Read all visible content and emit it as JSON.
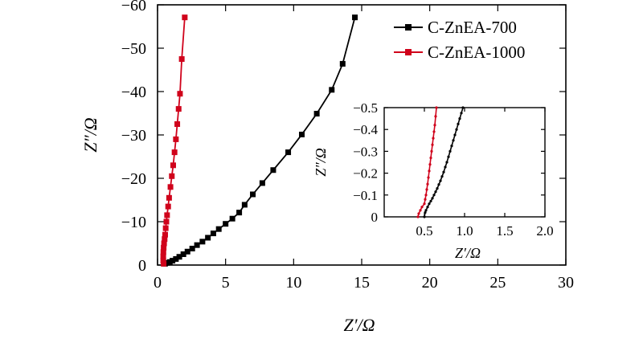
{
  "chart_data": [
    {
      "type": "scatter",
      "title": "",
      "xlabel": "Z′/Ω",
      "ylabel": "Z″/Ω",
      "xlim": [
        0,
        30
      ],
      "ylim": [
        0,
        -60
      ],
      "xticks": [
        0,
        5,
        10,
        15,
        20,
        25,
        30
      ],
      "xtick_labels": [
        "0",
        "5",
        "10",
        "15",
        "20",
        "25",
        "30"
      ],
      "yticks": [
        0,
        -10,
        -20,
        -30,
        -40,
        -50,
        -60
      ],
      "ytick_labels": [
        "0",
        "−10",
        "−20",
        "−30",
        "−40",
        "−50",
        "−60"
      ],
      "legend_position": "top-right",
      "series": [
        {
          "name": "C-ZnEA-700",
          "color": "#000000",
          "marker": "square",
          "x": [
            0.55,
            0.7,
            0.9,
            1.1,
            1.35,
            1.6,
            1.9,
            2.2,
            2.55,
            2.9,
            3.3,
            3.7,
            4.1,
            4.5,
            5.0,
            5.5,
            6.0,
            6.4,
            7.0,
            7.7,
            8.5,
            9.6,
            10.6,
            11.7,
            12.8,
            13.6,
            14.5
          ],
          "y": [
            -0.3,
            -0.5,
            -0.7,
            -1.0,
            -1.4,
            -1.9,
            -2.5,
            -3.1,
            -3.8,
            -4.6,
            -5.4,
            -6.3,
            -7.3,
            -8.3,
            -9.5,
            -10.7,
            -12.1,
            -13.9,
            -16.3,
            -18.9,
            -21.9,
            -26.0,
            -30.1,
            -34.9,
            -40.4,
            -46.4,
            -57.1
          ]
        },
        {
          "name": "C-ZnEA-1000",
          "color": "#d0021b",
          "marker": "square",
          "x": [
            0.45,
            0.42,
            0.42,
            0.43,
            0.45,
            0.48,
            0.52,
            0.56,
            0.6,
            0.65,
            0.7,
            0.78,
            0.85,
            0.95,
            1.05,
            1.15,
            1.25,
            1.35,
            1.45,
            1.55,
            1.65,
            1.78,
            2.0
          ],
          "y": [
            -0.3,
            -1.0,
            -2.0,
            -3.0,
            -4.0,
            -5.0,
            -6.0,
            -7.0,
            -8.5,
            -10.0,
            -11.5,
            -13.5,
            -15.5,
            -18.0,
            -20.5,
            -23.0,
            -26.0,
            -29.0,
            -32.5,
            -36.0,
            -39.5,
            -47.5,
            -57.1
          ]
        }
      ]
    },
    {
      "type": "line",
      "title": "",
      "xlabel": "Z′/Ω",
      "ylabel": "Z″/Ω",
      "xlim": [
        0,
        2.0
      ],
      "ylim": [
        0,
        -0.5
      ],
      "xticks": [
        0.5,
        1.0,
        1.5,
        2.0
      ],
      "xtick_labels": [
        "0.5",
        "1.0",
        "1.5",
        "2.0"
      ],
      "yticks": [
        0,
        -0.1,
        -0.2,
        -0.3,
        -0.4,
        -0.5
      ],
      "ytick_labels": [
        "0",
        "−0.1",
        "−0.2",
        "−0.3",
        "−0.4",
        "−0.5"
      ],
      "series": [
        {
          "name": "C-ZnEA-700",
          "color": "#000000",
          "marker": "dot",
          "x": [
            0.5,
            0.51,
            0.52,
            0.54,
            0.56,
            0.58,
            0.6,
            0.62,
            0.64,
            0.66,
            0.68,
            0.7,
            0.72,
            0.74,
            0.76,
            0.78,
            0.8,
            0.82,
            0.84,
            0.86,
            0.88,
            0.9,
            0.92,
            0.94,
            0.96,
            0.98
          ],
          "y": [
            -0.0,
            -0.02,
            -0.03,
            -0.045,
            -0.06,
            -0.072,
            -0.085,
            -0.1,
            -0.115,
            -0.13,
            -0.148,
            -0.165,
            -0.185,
            -0.205,
            -0.228,
            -0.25,
            -0.275,
            -0.3,
            -0.325,
            -0.35,
            -0.375,
            -0.4,
            -0.425,
            -0.45,
            -0.475,
            -0.5
          ]
        },
        {
          "name": "C-ZnEA-1000",
          "color": "#d0021b",
          "marker": "dot",
          "x": [
            0.42,
            0.43,
            0.45,
            0.47,
            0.5,
            0.51,
            0.52,
            0.53,
            0.54,
            0.55,
            0.56,
            0.57,
            0.58,
            0.59,
            0.6,
            0.61,
            0.62,
            0.63,
            0.64,
            0.65
          ],
          "y": [
            -0.0,
            -0.015,
            -0.03,
            -0.045,
            -0.06,
            -0.08,
            -0.1,
            -0.125,
            -0.15,
            -0.18,
            -0.21,
            -0.24,
            -0.27,
            -0.3,
            -0.33,
            -0.36,
            -0.39,
            -0.42,
            -0.46,
            -0.5
          ]
        }
      ]
    }
  ],
  "legend": {
    "items": [
      {
        "label": "C-ZnEA-700",
        "color": "#000000"
      },
      {
        "label": "C-ZnEA-1000",
        "color": "#d0021b"
      }
    ]
  }
}
